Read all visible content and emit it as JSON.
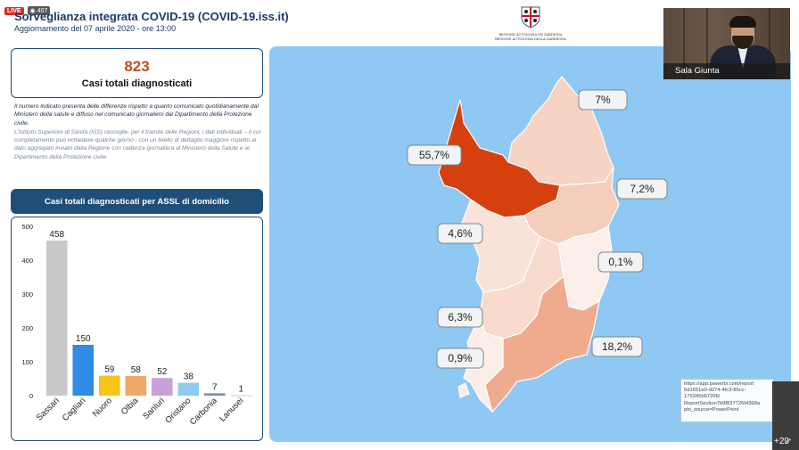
{
  "stream": {
    "live_label": "LIVE",
    "viewer_count": "407"
  },
  "header": {
    "title": "Sorveglianza integrata COVID-19 (COVID-19.iss.it)",
    "subtitle": "Aggiornamento del 07 aprile 2020 - ore 13:00"
  },
  "emblem": {
    "line1": "REGIONE AUTÒNOMA DE SARDIGNA",
    "line2": "REGIONE AUTONOMA DELLA SARDEGNA"
  },
  "kpi": {
    "value": "823",
    "label": "Casi totali diagnosticati"
  },
  "note": {
    "paragraph1": "Il numero indicato presenta delle differenze rispetto a quanto comunicato quotidianamente dal Ministero della salute e diffuso nel comunicato giornaliero dal Dipartimento della Protezione civile.",
    "paragraph2": "L'Istituto Superiore di Sanità (ISS) raccoglie, per il tramite delle Regioni, i dati individuali – il cui completamento può richiedere qualche giorno - con un livello di dettaglio maggiore rispetto al dato aggregato inviato dalla Regione con cadenza giornaliera al Ministero della Salute e al Dipartimento della Protezione civile."
  },
  "chart_header": "Casi totali diagnosticati per ASSL di domicilio",
  "chart_data": {
    "type": "bar",
    "title": "Casi totali diagnosticati per ASSL di domicilio",
    "categories": [
      "Sassari",
      "Cagliari",
      "Nuoro",
      "Olbia",
      "Sanluri",
      "Oristano",
      "Carbonia",
      "Lanusei"
    ],
    "values": [
      458,
      150,
      59,
      58,
      52,
      38,
      7,
      1
    ],
    "value_labels": [
      "458",
      "150",
      "59",
      "58",
      "52",
      "38",
      "7",
      "1"
    ],
    "colors": [
      "#c8c8c8",
      "#2e8be6",
      "#f5c518",
      "#f0a868",
      "#c9a0d8",
      "#8ecbee",
      "#7f8fa6",
      "#b4c7d8"
    ],
    "ylim": [
      0,
      500
    ],
    "yticks": [
      0,
      100,
      200,
      300,
      400,
      500
    ],
    "xlabel": "",
    "ylabel": "",
    "grid": false,
    "legend": "none"
  },
  "map": {
    "regions": [
      {
        "id": "gallura",
        "label": "7%",
        "value": 7.0,
        "color": "#f6d3c3"
      },
      {
        "id": "sassari",
        "label": "55,7%",
        "value": 55.7,
        "color": "#d6400e"
      },
      {
        "id": "nuoro",
        "label": "7,2%",
        "value": 7.2,
        "color": "#f5cdbb"
      },
      {
        "id": "oristano",
        "label": "4,6%",
        "value": 4.6,
        "color": "#f9e3d9"
      },
      {
        "id": "ogliastra",
        "label": "0,1%",
        "value": 0.1,
        "color": "#fcefe9"
      },
      {
        "id": "medio-campidano",
        "label": "6,3%",
        "value": 6.3,
        "color": "#f8dbcd"
      },
      {
        "id": "cagliari",
        "label": "18,2%",
        "value": 18.2,
        "color": "#eeab8e"
      },
      {
        "id": "carbonia",
        "label": "0,9%",
        "value": 0.9,
        "color": "#fcede6"
      }
    ],
    "sea_color": "#8fc8f2"
  },
  "video": {
    "caller_label": "Sala Giunta"
  },
  "tooltip": {
    "lines": [
      "https://app.powerbi.com/report",
      "5d1651e0-d274-4fc3-85cc-",
      "175345b67206/",
      "ReportSection7b9f837726f4368a",
      "pbi_source=PowerPoint"
    ]
  },
  "participants": {
    "more_label": "+29"
  }
}
